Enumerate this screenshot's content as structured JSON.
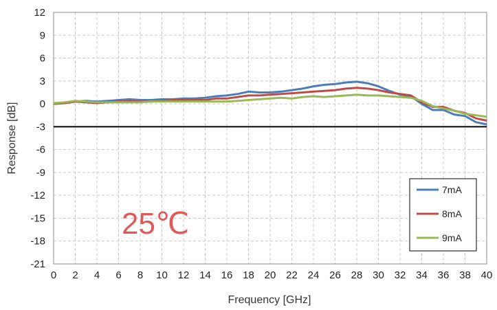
{
  "chart_data": {
    "type": "line",
    "xlabel": "Frequency [GHz]",
    "ylabel": "Response [dB]",
    "xlim": [
      0,
      40
    ],
    "ylim": [
      -21,
      12
    ],
    "xticks": [
      0,
      2,
      4,
      6,
      8,
      10,
      12,
      14,
      16,
      18,
      20,
      22,
      24,
      26,
      28,
      30,
      32,
      34,
      36,
      38,
      40
    ],
    "yticks": [
      12,
      9,
      6,
      3,
      0,
      -3,
      -6,
      -9,
      -12,
      -15,
      -18,
      -21
    ],
    "grid": true,
    "reference_line_y": -3,
    "legend_position": "bottom-right",
    "annotation": "25℃",
    "series": [
      {
        "name": "7mA",
        "color": "#4a7ebb",
        "x": [
          0,
          1,
          2,
          3,
          4,
          5,
          6,
          7,
          8,
          9,
          10,
          11,
          12,
          13,
          14,
          15,
          16,
          17,
          18,
          19,
          20,
          21,
          22,
          23,
          24,
          25,
          26,
          27,
          28,
          29,
          30,
          31,
          32,
          33,
          34,
          35,
          36,
          37,
          38,
          39,
          40
        ],
        "values": [
          0.0,
          0.1,
          0.3,
          0.4,
          0.3,
          0.4,
          0.5,
          0.6,
          0.5,
          0.5,
          0.6,
          0.6,
          0.7,
          0.7,
          0.8,
          1.0,
          1.1,
          1.3,
          1.6,
          1.5,
          1.5,
          1.6,
          1.8,
          2.0,
          2.3,
          2.5,
          2.6,
          2.8,
          2.9,
          2.7,
          2.3,
          1.7,
          1.2,
          1.0,
          0.0,
          -0.8,
          -0.8,
          -1.4,
          -1.6,
          -2.4,
          -2.7
        ]
      },
      {
        "name": "8mA",
        "color": "#be4b48",
        "x": [
          0,
          1,
          2,
          3,
          4,
          5,
          6,
          7,
          8,
          9,
          10,
          11,
          12,
          13,
          14,
          15,
          16,
          17,
          18,
          19,
          20,
          21,
          22,
          23,
          24,
          25,
          26,
          27,
          28,
          29,
          30,
          31,
          32,
          33,
          34,
          35,
          36,
          37,
          38,
          39,
          40
        ],
        "values": [
          0.0,
          0.1,
          0.3,
          0.2,
          0.1,
          0.2,
          0.3,
          0.4,
          0.3,
          0.3,
          0.4,
          0.5,
          0.5,
          0.5,
          0.5,
          0.7,
          0.7,
          0.9,
          1.1,
          1.1,
          1.2,
          1.3,
          1.4,
          1.5,
          1.6,
          1.7,
          1.8,
          2.0,
          2.1,
          2.0,
          1.8,
          1.5,
          1.3,
          1.1,
          0.2,
          -0.4,
          -0.4,
          -0.9,
          -1.2,
          -1.9,
          -2.2
        ]
      },
      {
        "name": "9mA",
        "color": "#98b954",
        "x": [
          0,
          1,
          2,
          3,
          4,
          5,
          6,
          7,
          8,
          9,
          10,
          11,
          12,
          13,
          14,
          15,
          16,
          17,
          18,
          19,
          20,
          21,
          22,
          23,
          24,
          25,
          26,
          27,
          28,
          29,
          30,
          31,
          32,
          33,
          34,
          35,
          36,
          37,
          38,
          39,
          40
        ],
        "values": [
          0.1,
          0.2,
          0.4,
          0.3,
          0.2,
          0.2,
          0.2,
          0.2,
          0.2,
          0.3,
          0.3,
          0.3,
          0.3,
          0.3,
          0.3,
          0.3,
          0.3,
          0.4,
          0.5,
          0.6,
          0.7,
          0.8,
          0.7,
          0.9,
          1.0,
          0.9,
          1.0,
          1.1,
          1.2,
          1.1,
          1.1,
          1.0,
          0.9,
          0.8,
          0.4,
          -0.3,
          -0.6,
          -0.9,
          -1.3,
          -1.5,
          -1.7
        ]
      }
    ]
  }
}
